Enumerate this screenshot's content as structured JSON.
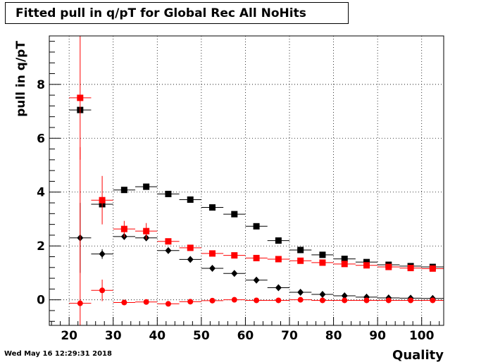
{
  "header": {
    "title": "Fitted pull in q/pT for Global Rec All NoHits",
    "timestamp": "Wed May 16 12:29:31 2018"
  },
  "colors": {
    "series_black": "#000000",
    "series_red": "#ff0000",
    "grid": "#000000"
  },
  "chart_data": {
    "type": "scatter",
    "title": "Fitted pull in q/pT for Global Rec All NoHits",
    "xlabel": "Quality",
    "ylabel": "pull in q/pT",
    "xlim": [
      15.5,
      105
    ],
    "ylim": [
      -0.95,
      9.8
    ],
    "x_ticks": [
      20,
      30,
      40,
      50,
      60,
      70,
      80,
      90,
      100
    ],
    "y_ticks": [
      0,
      2,
      4,
      6,
      8
    ],
    "grid": true,
    "x": [
      22.5,
      27.5,
      32.5,
      37.5,
      42.5,
      47.5,
      52.5,
      57.5,
      62.5,
      67.5,
      72.5,
      77.5,
      82.5,
      87.5,
      92.5,
      97.5,
      102.5
    ],
    "x_bin_half_width": 2.5,
    "series": [
      {
        "marker": "square",
        "color": "#000000",
        "values": [
          7.05,
          3.55,
          4.08,
          4.2,
          3.93,
          3.72,
          3.43,
          3.18,
          2.73,
          2.2,
          1.85,
          1.67,
          1.52,
          1.4,
          1.3,
          1.25,
          1.22
        ],
        "errors": [
          0.0,
          0.12,
          0.08,
          0.06,
          0.05,
          0.04,
          0.04,
          0.04,
          0.04,
          0.04,
          0.03,
          0.03,
          0.03,
          0.03,
          0.03,
          0.03,
          0.03
        ]
      },
      {
        "marker": "diamond",
        "color": "#000000",
        "values": [
          2.3,
          1.7,
          2.35,
          2.3,
          1.83,
          1.5,
          1.17,
          0.98,
          0.73,
          0.45,
          0.28,
          0.2,
          0.15,
          0.1,
          0.07,
          0.06,
          0.05
        ],
        "errors": [
          1.3,
          0.18,
          0.1,
          0.06,
          0.05,
          0.04,
          0.04,
          0.03,
          0.03,
          0.03,
          0.03,
          0.03,
          0.03,
          0.03,
          0.03,
          0.03,
          0.03
        ]
      },
      {
        "marker": "square",
        "color": "#ff0000",
        "values": [
          7.5,
          3.7,
          2.63,
          2.55,
          2.17,
          1.93,
          1.72,
          1.65,
          1.55,
          1.51,
          1.45,
          1.38,
          1.33,
          1.28,
          1.22,
          1.18,
          1.16
        ],
        "errors": [
          2.3,
          0.9,
          0.3,
          0.3,
          0.1,
          0.06,
          0.05,
          0.04,
          0.04,
          0.04,
          0.03,
          0.03,
          0.03,
          0.03,
          0.03,
          0.03,
          0.03
        ]
      },
      {
        "marker": "circle",
        "color": "#ff0000",
        "values": [
          -0.13,
          0.35,
          -0.1,
          -0.08,
          -0.15,
          -0.07,
          -0.03,
          0.0,
          -0.02,
          -0.02,
          0.0,
          -0.02,
          -0.02,
          -0.02,
          -0.02,
          -0.02,
          -0.02
        ],
        "errors": [
          5.8,
          0.4,
          0.05,
          0.04,
          0.04,
          0.03,
          0.02,
          0.02,
          0.02,
          0.02,
          0.02,
          0.02,
          0.02,
          0.02,
          0.02,
          0.02,
          0.02
        ]
      }
    ]
  }
}
